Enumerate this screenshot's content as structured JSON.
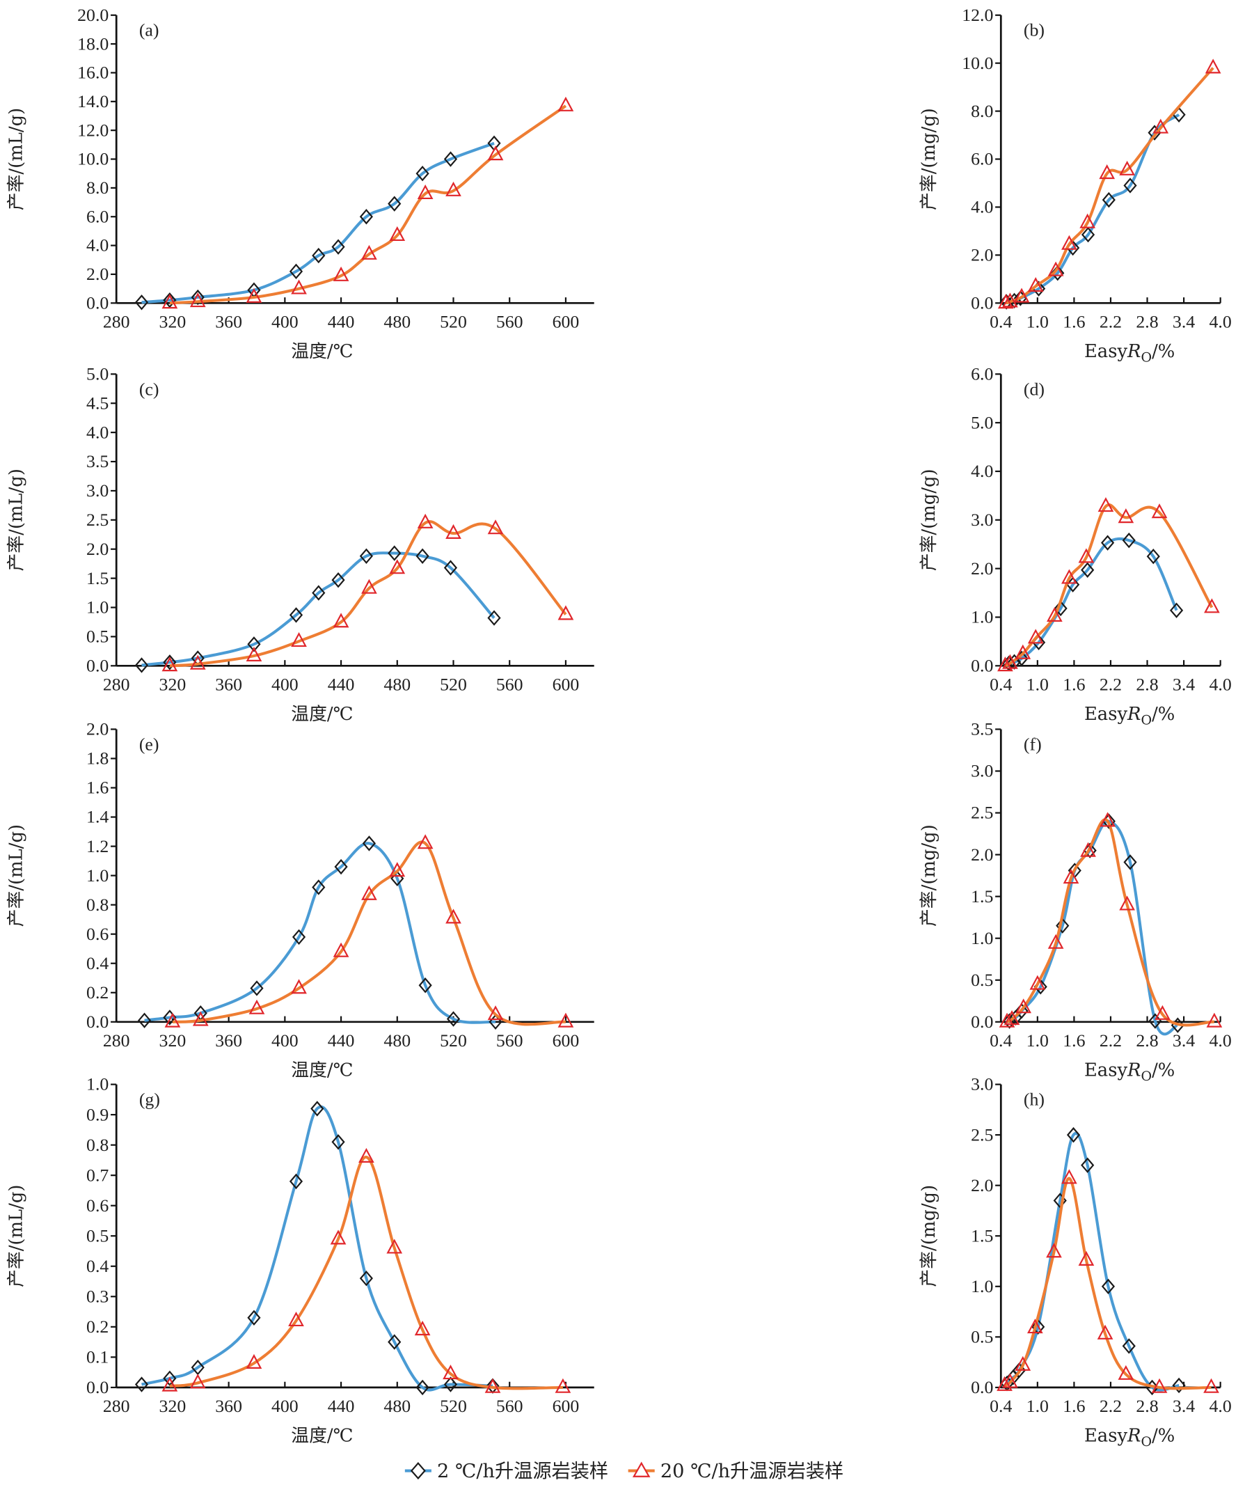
{
  "colors": {
    "series1_line": "#4a9bd4",
    "series1_marker": "#1a1a1a",
    "series2_line": "#ee7d33",
    "series2_marker": "#e0262b"
  },
  "legend": [
    {
      "label": "2 ℃/h升温源岩装样",
      "marker": "diamond"
    },
    {
      "label": "20 ℃/h升温源岩装样",
      "marker": "triangle"
    }
  ],
  "chart_data": [
    {
      "id": "a",
      "type": "line",
      "panel_label": "(a)",
      "xlabel": "温度/℃",
      "ylabel": "产率/(mL/g)",
      "xlim": [
        280,
        600
      ],
      "xticks": [
        280,
        320,
        360,
        400,
        440,
        480,
        520,
        560,
        600
      ],
      "ylim": [
        0,
        20
      ],
      "yticks": [
        "0.0",
        "2.0",
        "4.0",
        "6.0",
        "8.0",
        "10.0",
        "12.0",
        "14.0",
        "16.0",
        "18.0",
        "20.0"
      ],
      "series": [
        {
          "name": "2 ℃/h升温源岩装样",
          "x": [
            298,
            318,
            338,
            378,
            408,
            424,
            438,
            458,
            478,
            498,
            518,
            549
          ],
          "y": [
            0.05,
            0.2,
            0.4,
            0.9,
            2.2,
            3.3,
            3.9,
            6.0,
            6.9,
            9.0,
            10.0,
            11.1
          ]
        },
        {
          "name": "20 ℃/h升温源岩装样",
          "x": [
            318,
            338,
            378,
            410,
            440,
            460,
            480,
            500,
            520,
            550,
            600
          ],
          "y": [
            0.0,
            0.1,
            0.4,
            1.0,
            1.9,
            3.4,
            4.7,
            7.6,
            7.8,
            10.3,
            13.7
          ]
        }
      ]
    },
    {
      "id": "b",
      "type": "line",
      "panel_label": "(b)",
      "xlabel": "EasyRo/%",
      "ylabel": "产率/(mg/g)",
      "xlim": [
        0.4,
        4.0
      ],
      "xticks": [
        "0.4",
        "1.0",
        "1.6",
        "2.2",
        "2.8",
        "3.4",
        "4.0"
      ],
      "ylim": [
        0,
        12
      ],
      "yticks": [
        "0.0",
        "2.0",
        "4.0",
        "6.0",
        "8.0",
        "10.0",
        "12.0"
      ],
      "series": [
        {
          "name": "2 ℃/h升温源岩装样",
          "x": [
            0.49,
            0.62,
            0.72,
            1.02,
            1.33,
            1.58,
            1.83,
            2.17,
            2.52,
            2.92,
            3.32
          ],
          "y": [
            0.05,
            0.1,
            0.2,
            0.6,
            1.25,
            2.3,
            2.85,
            4.3,
            4.9,
            7.1,
            7.85
          ]
        },
        {
          "name": "20 ℃/h升温源岩装样",
          "x": [
            0.48,
            0.55,
            0.74,
            0.97,
            1.3,
            1.52,
            1.82,
            2.14,
            2.47,
            3.02,
            3.88
          ],
          "y": [
            0.0,
            0.05,
            0.25,
            0.7,
            1.35,
            2.45,
            3.35,
            5.4,
            5.55,
            7.3,
            9.8
          ]
        }
      ]
    },
    {
      "id": "c",
      "type": "line",
      "panel_label": "(c)",
      "xlabel": "温度/℃",
      "ylabel": "产率/(mL/g)",
      "xlim": [
        280,
        600
      ],
      "xticks": [
        280,
        320,
        360,
        400,
        440,
        480,
        520,
        560,
        600
      ],
      "ylim": [
        0,
        5
      ],
      "yticks": [
        "0.0",
        "0.5",
        "1.0",
        "1.5",
        "2.0",
        "2.5",
        "3.0",
        "3.5",
        "4.0",
        "4.5",
        "5.0"
      ],
      "series": [
        {
          "name": "2 ℃/h升温源岩装样",
          "x": [
            298,
            318,
            338,
            378,
            408,
            424,
            438,
            458,
            478,
            498,
            518,
            549
          ],
          "y": [
            0.01,
            0.06,
            0.13,
            0.37,
            0.87,
            1.25,
            1.47,
            1.88,
            1.93,
            1.88,
            1.68,
            0.82
          ]
        },
        {
          "name": "20 ℃/h升温源岩装样",
          "x": [
            318,
            338,
            378,
            410,
            440,
            460,
            480,
            500,
            520,
            550,
            600
          ],
          "y": [
            0.0,
            0.03,
            0.17,
            0.42,
            0.75,
            1.33,
            1.67,
            2.45,
            2.27,
            2.35,
            0.88
          ]
        }
      ]
    },
    {
      "id": "d",
      "type": "line",
      "panel_label": "(d)",
      "xlabel": "EasyRo/%",
      "ylabel": "产率/(mg/g)",
      "xlim": [
        0.4,
        4.0
      ],
      "xticks": [
        "0.4",
        "1.0",
        "1.6",
        "2.2",
        "2.8",
        "3.4",
        "4.0"
      ],
      "ylim": [
        0,
        6
      ],
      "yticks": [
        "0.0",
        "1.0",
        "2.0",
        "3.0",
        "4.0",
        "5.0",
        "6.0"
      ],
      "series": [
        {
          "name": "2 ℃/h升温源岩装样",
          "x": [
            0.53,
            0.62,
            0.74,
            1.02,
            1.38,
            1.58,
            1.82,
            2.15,
            2.5,
            2.9,
            3.28
          ],
          "y": [
            0.05,
            0.08,
            0.15,
            0.48,
            1.18,
            1.67,
            1.97,
            2.53,
            2.58,
            2.25,
            1.14
          ]
        },
        {
          "name": "20 ℃/h升温源岩装样",
          "x": [
            0.47,
            0.55,
            0.76,
            0.97,
            1.28,
            1.52,
            1.8,
            2.12,
            2.45,
            3.0,
            3.86
          ],
          "y": [
            0.0,
            0.05,
            0.25,
            0.57,
            1.02,
            1.8,
            2.23,
            3.28,
            3.05,
            3.15,
            1.2
          ]
        }
      ]
    },
    {
      "id": "e",
      "type": "line",
      "panel_label": "(e)",
      "xlabel": "温度/℃",
      "ylabel": "产率/(mL/g)",
      "xlim": [
        280,
        600
      ],
      "xticks": [
        280,
        320,
        360,
        400,
        440,
        480,
        520,
        560,
        600
      ],
      "ylim": [
        0,
        2
      ],
      "yticks": [
        "0.0",
        "0.2",
        "0.4",
        "0.6",
        "0.8",
        "1.0",
        "1.2",
        "1.4",
        "1.6",
        "1.8",
        "2.0"
      ],
      "series": [
        {
          "name": "2 ℃/h升温源岩装样",
          "x": [
            300,
            318,
            340,
            380,
            410,
            424,
            440,
            460,
            480,
            500,
            520,
            550
          ],
          "y": [
            0.01,
            0.03,
            0.06,
            0.23,
            0.58,
            0.92,
            1.06,
            1.22,
            0.98,
            0.25,
            0.02,
            0.0
          ]
        },
        {
          "name": "20 ℃/h升温源岩装样",
          "x": [
            320,
            340,
            380,
            410,
            440,
            460,
            480,
            500,
            520,
            550,
            600
          ],
          "y": [
            0.0,
            0.01,
            0.09,
            0.23,
            0.48,
            0.87,
            1.03,
            1.22,
            0.71,
            0.05,
            0.0
          ]
        }
      ]
    },
    {
      "id": "f",
      "type": "line",
      "panel_label": "(f)",
      "xlabel": "EasyRo/%",
      "ylabel": "产率/(mg/g)",
      "xlim": [
        0.4,
        4.0
      ],
      "xticks": [
        "0.4",
        "1.0",
        "1.6",
        "2.2",
        "2.8",
        "3.4",
        "4.0"
      ],
      "ylim": [
        0,
        3.5
      ],
      "yticks": [
        "0.0",
        "0.5",
        "1.0",
        "1.5",
        "2.0",
        "2.5",
        "3.0",
        "3.5"
      ],
      "series": [
        {
          "name": "2 ℃/h升温源岩装样",
          "x": [
            0.54,
            0.64,
            0.74,
            1.05,
            1.41,
            1.61,
            1.86,
            2.17,
            2.52,
            2.93,
            3.3
          ],
          "y": [
            0.01,
            0.05,
            0.13,
            0.42,
            1.15,
            1.81,
            2.05,
            2.4,
            1.91,
            0.01,
            -0.04
          ]
        },
        {
          "name": "20 ℃/h升温源岩装样",
          "x": [
            0.5,
            0.58,
            0.77,
            1.0,
            1.3,
            1.55,
            1.83,
            2.15,
            2.47,
            3.05,
            3.9
          ],
          "y": [
            0.0,
            0.03,
            0.17,
            0.45,
            0.94,
            1.72,
            2.04,
            2.4,
            1.4,
            0.09,
            0.0
          ]
        }
      ]
    },
    {
      "id": "g",
      "type": "line",
      "panel_label": "(g)",
      "xlabel": "温度/℃",
      "ylabel": "产率/(mL/g)",
      "xlim": [
        280,
        600
      ],
      "xticks": [
        280,
        320,
        360,
        400,
        440,
        480,
        520,
        560,
        600
      ],
      "ylim": [
        0,
        1
      ],
      "yticks": [
        "0.0",
        "0.1",
        "0.2",
        "0.3",
        "0.4",
        "0.5",
        "0.6",
        "0.7",
        "0.8",
        "0.9",
        "1.0"
      ],
      "series": [
        {
          "name": "2 ℃/h升温源岩装样",
          "x": [
            298,
            318,
            338,
            378,
            408,
            423,
            438,
            458,
            478,
            498,
            518,
            548
          ],
          "y": [
            0.01,
            0.03,
            0.066,
            0.23,
            0.68,
            0.92,
            0.81,
            0.36,
            0.15,
            0.0,
            0.01,
            0.005
          ]
        },
        {
          "name": "20 ℃/h升温源岩装样",
          "x": [
            318,
            338,
            378,
            408,
            438,
            458,
            478,
            498,
            518,
            548,
            598
          ],
          "y": [
            0.005,
            0.015,
            0.08,
            0.22,
            0.49,
            0.76,
            0.46,
            0.19,
            0.045,
            0.0,
            0.0
          ]
        }
      ]
    },
    {
      "id": "h",
      "type": "line",
      "panel_label": "(h)",
      "xlabel": "EasyRo/%",
      "ylabel": "产率/(mg/g)",
      "xlim": [
        0.4,
        4.0
      ],
      "xticks": [
        "0.4",
        "1.0",
        "1.6",
        "2.2",
        "2.8",
        "3.4",
        "4.0"
      ],
      "ylim": [
        0,
        3
      ],
      "yticks": [
        "0.0",
        "0.5",
        "1.0",
        "1.5",
        "2.0",
        "2.5",
        "3.0"
      ],
      "series": [
        {
          "name": "2 ℃/h升温源岩装样",
          "x": [
            0.5,
            0.6,
            0.7,
            1.01,
            1.37,
            1.59,
            1.82,
            2.16,
            2.5,
            2.88,
            3.32
          ],
          "y": [
            0.04,
            0.1,
            0.17,
            0.6,
            1.85,
            2.5,
            2.2,
            1.0,
            0.41,
            0.0,
            0.02
          ]
        },
        {
          "name": "20 ℃/h升温源岩装样",
          "x": [
            0.46,
            0.55,
            0.76,
            0.96,
            1.27,
            1.52,
            1.8,
            2.11,
            2.45,
            3.0,
            3.85
          ],
          "y": [
            0.02,
            0.05,
            0.22,
            0.59,
            1.34,
            2.07,
            1.26,
            0.53,
            0.13,
            0.0,
            0.0
          ]
        }
      ]
    }
  ]
}
